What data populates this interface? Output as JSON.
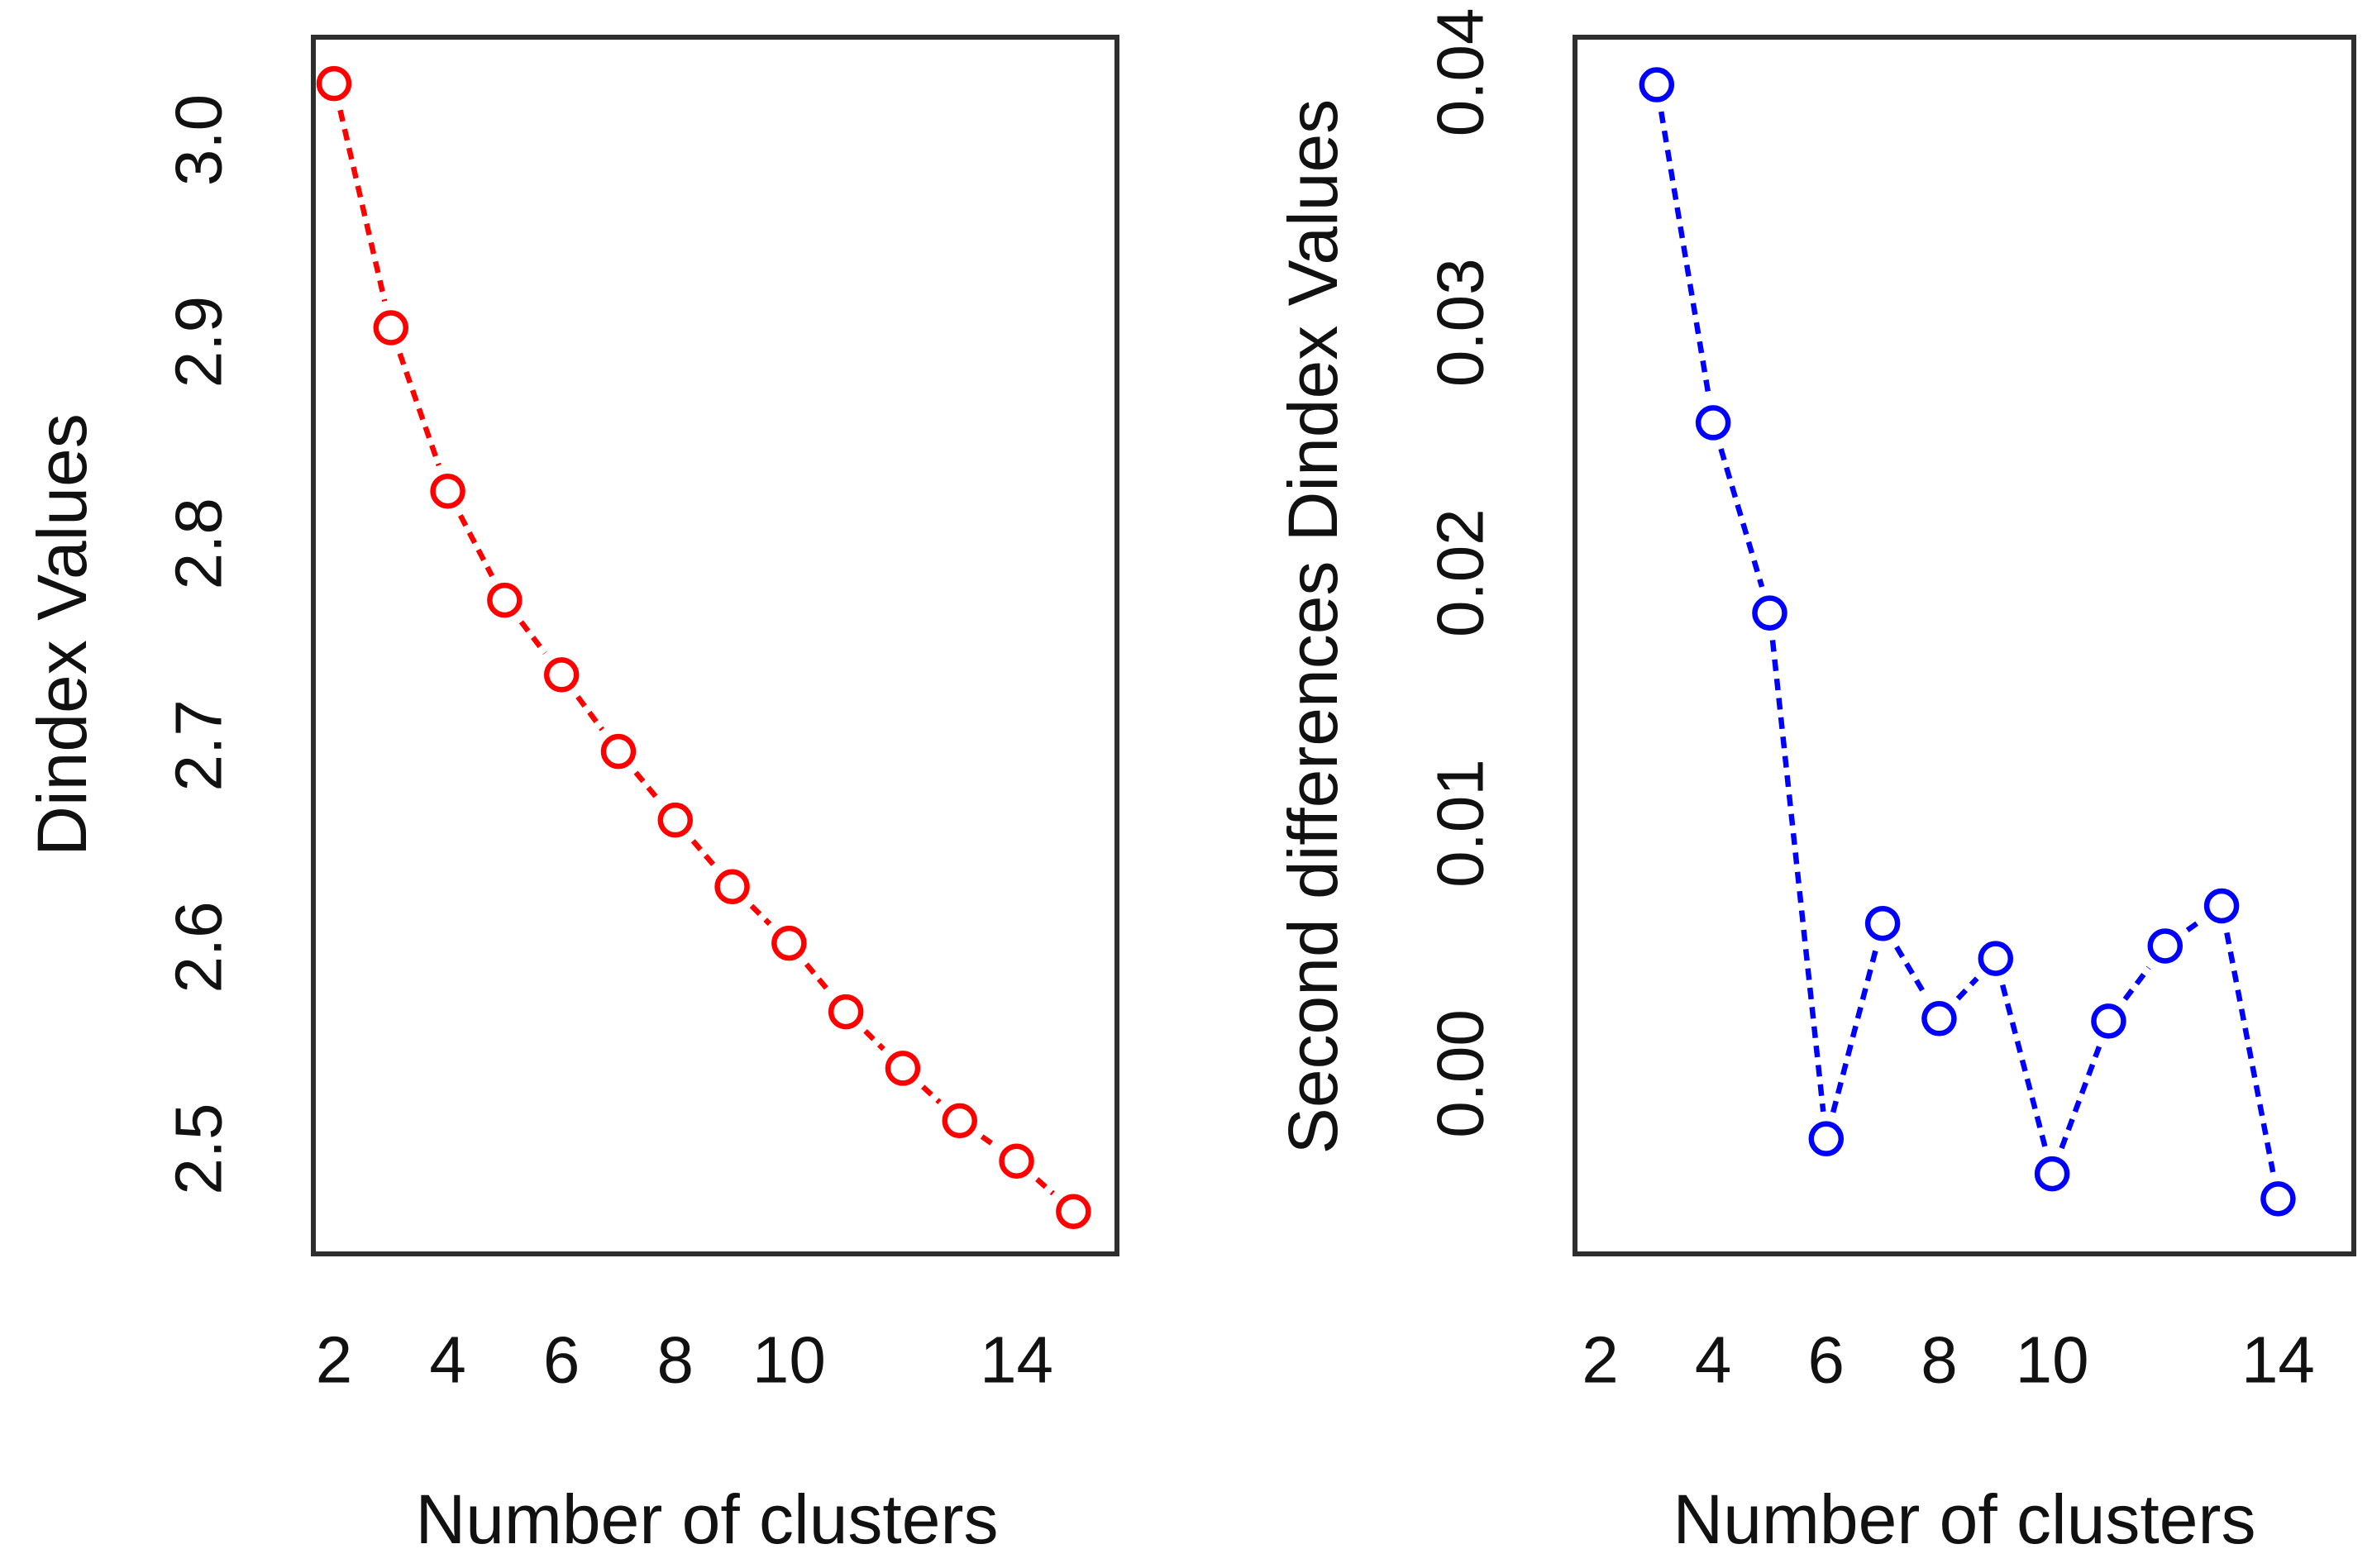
{
  "figure": {
    "background": "#FFFFFF",
    "frame_color": "#2e2e2e",
    "text_color": "#111111"
  },
  "chart_data": [
    {
      "type": "line",
      "title": "",
      "xlabel": "Number of clusters",
      "ylabel": "Dindex Values",
      "grid": false,
      "legend": null,
      "xlim": [
        1.637,
        15.765
      ],
      "ylim": [
        2.448,
        3.051
      ],
      "xticks": {
        "values": [
          2,
          4,
          6,
          8,
          10,
          14
        ],
        "labels": [
          "2",
          "4",
          "6",
          "8",
          "10",
          "14"
        ]
      },
      "yticks": {
        "values": [
          2.5,
          2.6,
          2.7,
          2.8,
          2.9,
          3.0
        ],
        "labels": [
          "2.5",
          "2.6",
          "2.7",
          "2.8",
          "2.9",
          "3.0"
        ]
      },
      "series": [
        {
          "name": "Dindex",
          "color": "#FF0000",
          "marker": "open-circle",
          "linestyle": "dashed",
          "x": [
            2,
            3,
            4,
            5,
            6,
            7,
            8,
            9,
            10,
            11,
            12,
            13,
            14,
            15
          ],
          "y": [
            3.028,
            2.907,
            2.826,
            2.772,
            2.735,
            2.697,
            2.663,
            2.63,
            2.602,
            2.568,
            2.54,
            2.514,
            2.494,
            2.469
          ]
        }
      ]
    },
    {
      "type": "line",
      "title": "",
      "xlabel": "Number of clusters",
      "ylabel": "Second differences Dindex Values",
      "grid": false,
      "legend": null,
      "xlim": [
        1.554,
        15.34
      ],
      "ylim": [
        -0.0072,
        0.0414
      ],
      "xticks": {
        "values": [
          2,
          4,
          6,
          8,
          10,
          14
        ],
        "labels": [
          "2",
          "4",
          "6",
          "8",
          "10",
          "14"
        ]
      },
      "yticks": {
        "values": [
          0.0,
          0.01,
          0.02,
          0.03,
          0.04
        ],
        "labels": [
          "0.00",
          "0.01",
          "0.02",
          "0.03",
          "0.04"
        ]
      },
      "series": [
        {
          "name": "Second differences Dindex",
          "color": "#0000FF",
          "marker": "open-circle",
          "linestyle": "dashed",
          "x": [
            3,
            4,
            5,
            6,
            7,
            8,
            9,
            10,
            11,
            12,
            13,
            14
          ],
          "y": [
            0.0395,
            0.026,
            0.0184,
            -0.0026,
            0.006,
            0.0022,
            0.0046,
            -0.004,
            0.0021,
            0.0051,
            0.0067,
            -0.005
          ]
        }
      ]
    }
  ]
}
